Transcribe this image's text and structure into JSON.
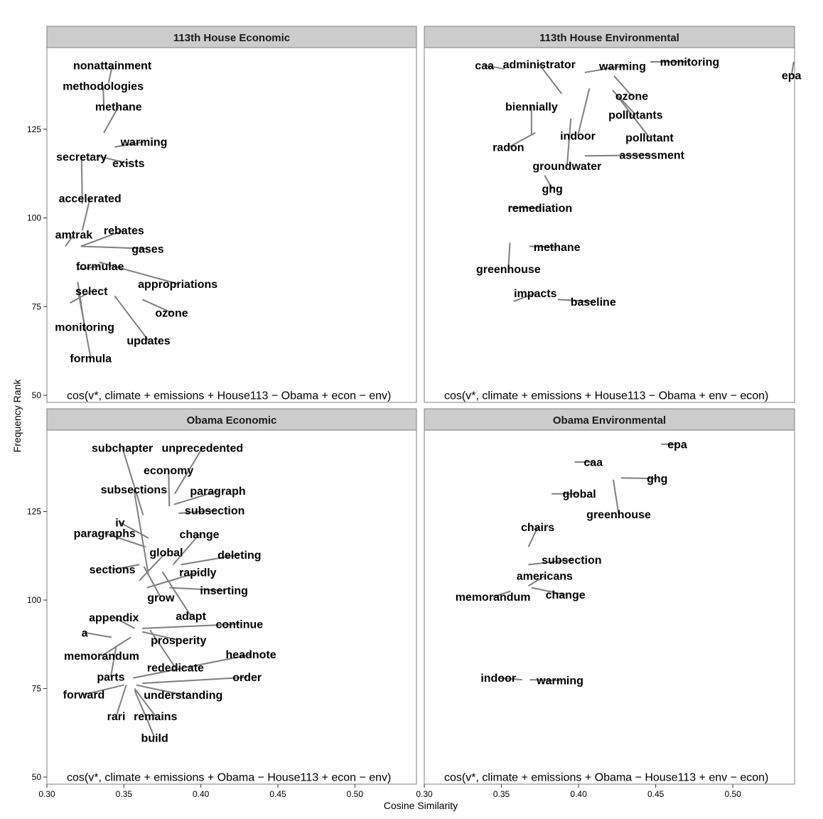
{
  "chart_data": {
    "type": "scatter",
    "subtype": "faceted labeled word scatter (text labels with leader lines)",
    "xlabel": "Cosine Similarity",
    "ylabel": "Frequency Rank",
    "xlim": [
      0.3,
      0.54
    ],
    "ylim": [
      48,
      148
    ],
    "x_ticks": [
      0.3,
      0.35,
      0.4,
      0.45,
      0.5
    ],
    "x_tick_labels": [
      "0.30",
      "0.35",
      "0.40",
      "0.45",
      "0.50"
    ],
    "y_ticks": [
      50,
      75,
      100,
      125
    ],
    "y_tick_labels": [
      "50",
      "75",
      "100",
      "125"
    ],
    "grid": false,
    "legend": "none",
    "label_color": "#000000",
    "leader_color": "#7f7f7f",
    "panels": [
      {
        "title": "113th House Economic",
        "formula": "cos(v*, climate + emissions + House113 − Obama + econ − env)",
        "points": [
          {
            "word": "nonattainment",
            "x": 0.34,
            "y": 138.0,
            "lx": 0.3425,
            "ly": 143.0
          },
          {
            "word": "methodologies",
            "x": 0.337,
            "y": 131.5,
            "lx": 0.3365,
            "ly": 137.2
          },
          {
            "word": "methane",
            "x": 0.337,
            "y": 124.0,
            "lx": 0.3465,
            "ly": 131.4
          },
          {
            "word": "warming",
            "x": 0.344,
            "y": 120.0,
            "lx": 0.363,
            "ly": 121.4
          },
          {
            "word": "exists",
            "x": 0.332,
            "y": 117.5,
            "lx": 0.353,
            "ly": 115.4
          },
          {
            "word": "secretary",
            "x": 0.323,
            "y": 104.0,
            "lx": 0.3225,
            "ly": 117.2
          },
          {
            "word": "accelerated",
            "x": 0.323,
            "y": 96.5,
            "lx": 0.328,
            "ly": 105.5
          },
          {
            "word": "amtrak",
            "x": 0.312,
            "y": 92.0,
            "lx": 0.3175,
            "ly": 95.3
          },
          {
            "word": "rebates",
            "x": 0.322,
            "y": 92.0,
            "lx": 0.35,
            "ly": 96.5
          },
          {
            "word": "gases",
            "x": 0.322,
            "y": 92.0,
            "lx": 0.3655,
            "ly": 91.3
          },
          {
            "word": "formulae",
            "x": 0.32,
            "y": 85.5,
            "lx": 0.3345,
            "ly": 86.4
          },
          {
            "word": "appropriations",
            "x": 0.334,
            "y": 87.5,
            "lx": 0.385,
            "ly": 81.4
          },
          {
            "word": "select",
            "x": 0.315,
            "y": 76.0,
            "lx": 0.329,
            "ly": 79.4
          },
          {
            "word": "ozone",
            "x": 0.362,
            "y": 77.0,
            "lx": 0.381,
            "ly": 73.3
          },
          {
            "word": "monitoring",
            "x": 0.32,
            "y": 82.0,
            "lx": 0.3245,
            "ly": 69.2
          },
          {
            "word": "updates",
            "x": 0.344,
            "y": 78.0,
            "lx": 0.366,
            "ly": 65.4
          },
          {
            "word": "formula",
            "x": 0.32,
            "y": 80.0,
            "lx": 0.3285,
            "ly": 60.4
          }
        ]
      },
      {
        "title": "113th House Environmental",
        "formula": "cos(v*, climate + emissions + House113 − Obama + env − econ)",
        "points": [
          {
            "word": "caa",
            "x": 0.352,
            "y": 142.0,
            "lx": 0.339,
            "ly": 143.0
          },
          {
            "word": "administrator",
            "x": 0.389,
            "y": 135.0,
            "lx": 0.3745,
            "ly": 143.3
          },
          {
            "word": "warming",
            "x": 0.404,
            "y": 141.0,
            "lx": 0.4285,
            "ly": 142.8
          },
          {
            "word": "monitoring",
            "x": 0.4465,
            "y": 144.0,
            "lx": 0.472,
            "ly": 144.0
          },
          {
            "word": "epa",
            "x": 0.5395,
            "y": 144.0,
            "lx": 0.538,
            "ly": 140.2
          },
          {
            "word": "ozone",
            "x": 0.423,
            "y": 140.0,
            "lx": 0.4345,
            "ly": 134.4
          },
          {
            "word": "biennially",
            "x": 0.3695,
            "y": 123.5,
            "lx": 0.3695,
            "ly": 131.4
          },
          {
            "word": "pollutants",
            "x": 0.422,
            "y": 136.0,
            "lx": 0.437,
            "ly": 129.1
          },
          {
            "word": "indoor",
            "x": 0.407,
            "y": 136.5,
            "lx": 0.3995,
            "ly": 123.2
          },
          {
            "word": "pollutant",
            "x": 0.424,
            "y": 135.0,
            "lx": 0.446,
            "ly": 122.6
          },
          {
            "word": "radon",
            "x": 0.372,
            "y": 124.0,
            "lx": 0.3545,
            "ly": 119.9
          },
          {
            "word": "assessment",
            "x": 0.404,
            "y": 117.5,
            "lx": 0.4475,
            "ly": 117.7
          },
          {
            "word": "groundwater",
            "x": 0.395,
            "y": 128.0,
            "lx": 0.3925,
            "ly": 114.6
          },
          {
            "word": "ghg",
            "x": 0.378,
            "y": 112.0,
            "lx": 0.383,
            "ly": 108.2
          },
          {
            "word": "remediation",
            "x": 0.356,
            "y": 103.0,
            "lx": 0.375,
            "ly": 102.8
          },
          {
            "word": "methane",
            "x": 0.368,
            "y": 92.0,
            "lx": 0.386,
            "ly": 91.8
          },
          {
            "word": "greenhouse",
            "x": 0.3555,
            "y": 93.0,
            "lx": 0.3545,
            "ly": 85.6
          },
          {
            "word": "impacts",
            "x": 0.358,
            "y": 76.5,
            "lx": 0.372,
            "ly": 78.8
          },
          {
            "word": "baseline",
            "x": 0.3865,
            "y": 77.0,
            "lx": 0.4095,
            "ly": 76.4
          }
        ]
      },
      {
        "title": "Obama Economic",
        "formula": "cos(v*, climate + emissions + Obama − House113 + econ − env)",
        "points": [
          {
            "word": "subchapter",
            "x": 0.3625,
            "y": 124.0,
            "lx": 0.349,
            "ly": 143.0
          },
          {
            "word": "unprecedented",
            "x": 0.383,
            "y": 130.0,
            "lx": 0.401,
            "ly": 143.0
          },
          {
            "word": "economy",
            "x": 0.3795,
            "y": 126.5,
            "lx": 0.379,
            "ly": 136.7
          },
          {
            "word": "subsections",
            "x": 0.366,
            "y": 107.0,
            "lx": 0.3565,
            "ly": 131.2
          },
          {
            "word": "paragraph",
            "x": 0.3825,
            "y": 127.0,
            "lx": 0.411,
            "ly": 130.8
          },
          {
            "word": "subsection",
            "x": 0.3855,
            "y": 124.5,
            "lx": 0.409,
            "ly": 125.3
          },
          {
            "word": "iv",
            "x": 0.366,
            "y": 117.5,
            "lx": 0.3475,
            "ly": 121.9
          },
          {
            "word": "paragraphs",
            "x": 0.364,
            "y": 115.0,
            "lx": 0.3375,
            "ly": 118.9
          },
          {
            "word": "change",
            "x": 0.382,
            "y": 110.0,
            "lx": 0.399,
            "ly": 118.6
          },
          {
            "word": "global",
            "x": 0.36,
            "y": 105.5,
            "lx": 0.3775,
            "ly": 113.5
          },
          {
            "word": "deleting",
            "x": 0.387,
            "y": 110.0,
            "lx": 0.425,
            "ly": 112.8
          },
          {
            "word": "sections",
            "x": 0.36,
            "y": 110.0,
            "lx": 0.3425,
            "ly": 108.6
          },
          {
            "word": "rapidly",
            "x": 0.365,
            "y": 103.5,
            "lx": 0.398,
            "ly": 107.8
          },
          {
            "word": "inserting",
            "x": 0.3795,
            "y": 103.5,
            "lx": 0.415,
            "ly": 102.7
          },
          {
            "word": "grow",
            "x": 0.363,
            "y": 109.5,
            "lx": 0.374,
            "ly": 100.7
          },
          {
            "word": "adapt",
            "x": 0.375,
            "y": 108.0,
            "lx": 0.3935,
            "ly": 95.5
          },
          {
            "word": "appendix",
            "x": 0.357,
            "y": 92.0,
            "lx": 0.3435,
            "ly": 95.1
          },
          {
            "word": "continue",
            "x": 0.362,
            "y": 92.0,
            "lx": 0.425,
            "ly": 93.2
          },
          {
            "word": "a",
            "x": 0.342,
            "y": 89.5,
            "lx": 0.3245,
            "ly": 90.8
          },
          {
            "word": "prosperity",
            "x": 0.362,
            "y": 91.0,
            "lx": 0.3855,
            "ly": 88.7
          },
          {
            "word": "memorandum",
            "x": 0.3545,
            "y": 89.5,
            "lx": 0.3355,
            "ly": 84.2
          },
          {
            "word": "headnote",
            "x": 0.356,
            "y": 78.0,
            "lx": 0.4325,
            "ly": 84.6
          },
          {
            "word": "rededicate",
            "x": 0.367,
            "y": 91.5,
            "lx": 0.3835,
            "ly": 80.9
          },
          {
            "word": "parts",
            "x": 0.345,
            "y": 87.0,
            "lx": 0.3415,
            "ly": 78.3
          },
          {
            "word": "order",
            "x": 0.362,
            "y": 76.5,
            "lx": 0.43,
            "ly": 78.2
          },
          {
            "word": "forward",
            "x": 0.35,
            "y": 76.0,
            "lx": 0.324,
            "ly": 73.3
          },
          {
            "word": "understanding",
            "x": 0.358,
            "y": 76.0,
            "lx": 0.3885,
            "ly": 73.2
          },
          {
            "word": "rari",
            "x": 0.3515,
            "y": 76.0,
            "lx": 0.345,
            "ly": 67.2
          },
          {
            "word": "remains",
            "x": 0.357,
            "y": 75.0,
            "lx": 0.3705,
            "ly": 67.2
          },
          {
            "word": "build",
            "x": 0.357,
            "y": 74.5,
            "lx": 0.37,
            "ly": 61.1
          }
        ]
      },
      {
        "title": "Obama Environmental",
        "formula": "cos(v*, climate + emissions + Obama − House113 + env − econ)",
        "points": [
          {
            "word": "epa",
            "x": 0.4535,
            "y": 144.0,
            "lx": 0.464,
            "ly": 144.0
          },
          {
            "word": "caa",
            "x": 0.3975,
            "y": 139.0,
            "lx": 0.4095,
            "ly": 139.0
          },
          {
            "word": "ghg",
            "x": 0.4275,
            "y": 134.5,
            "lx": 0.451,
            "ly": 134.3
          },
          {
            "word": "global",
            "x": 0.3825,
            "y": 130.0,
            "lx": 0.4005,
            "ly": 130.0
          },
          {
            "word": "greenhouse",
            "x": 0.4225,
            "y": 134.0,
            "lx": 0.426,
            "ly": 124.2
          },
          {
            "word": "chairs",
            "x": 0.3675,
            "y": 115.0,
            "lx": 0.3735,
            "ly": 120.6
          },
          {
            "word": "subsection",
            "x": 0.3675,
            "y": 110.0,
            "lx": 0.3955,
            "ly": 111.4
          },
          {
            "word": "americans",
            "x": 0.3675,
            "y": 104.0,
            "lx": 0.378,
            "ly": 106.8
          },
          {
            "word": "memorandum",
            "x": 0.356,
            "y": 102.5,
            "lx": 0.3445,
            "ly": 100.9
          },
          {
            "word": "change",
            "x": 0.3695,
            "y": 103.5,
            "lx": 0.3915,
            "ly": 101.5
          },
          {
            "word": "indoor",
            "x": 0.3635,
            "y": 77.5,
            "lx": 0.348,
            "ly": 78.0
          },
          {
            "word": "warming",
            "x": 0.3685,
            "y": 77.5,
            "lx": 0.388,
            "ly": 77.3
          }
        ]
      }
    ]
  }
}
